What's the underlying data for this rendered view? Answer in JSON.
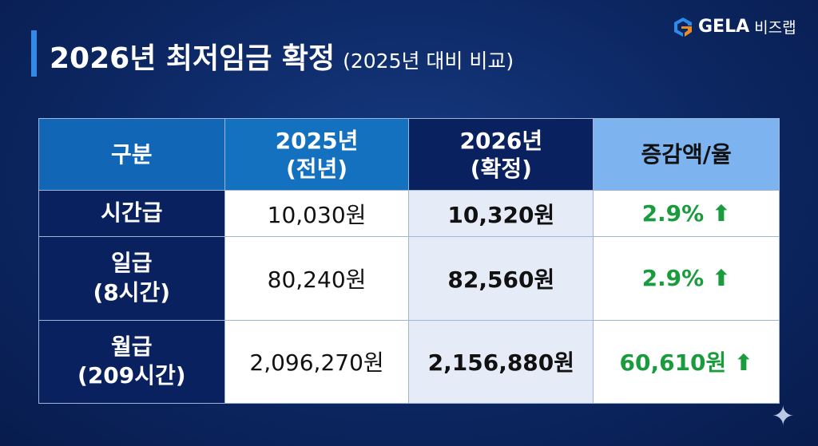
{
  "title": {
    "main": "2026년 최저임금 확정",
    "sub": "(2025년 대비 비교)"
  },
  "logo": {
    "brand": "GELA",
    "suffix": "비즈랩"
  },
  "table": {
    "headers": [
      {
        "line1": "구분"
      },
      {
        "line1": "2025년",
        "line2": "(전년)"
      },
      {
        "line1": "2026년",
        "line2": "(확정)"
      },
      {
        "line1": "증감액/율"
      }
    ],
    "rows": [
      {
        "label": "시간급",
        "label2": "",
        "y2025": "10,030원",
        "y2026": "10,320원",
        "change": "2.9%"
      },
      {
        "label": "일급",
        "label2": "(8시간)",
        "y2025": "80,240원",
        "y2026": "82,560원",
        "change": "2.9%"
      },
      {
        "label": "월급",
        "label2": "(209시간)",
        "y2025": "2,096,270원",
        "y2026": "2,156,880원",
        "change": "60,610원"
      }
    ]
  },
  "colors": {
    "background": "#0c2763",
    "accent": "#2f8be6",
    "increase": "#1a9c3e"
  }
}
